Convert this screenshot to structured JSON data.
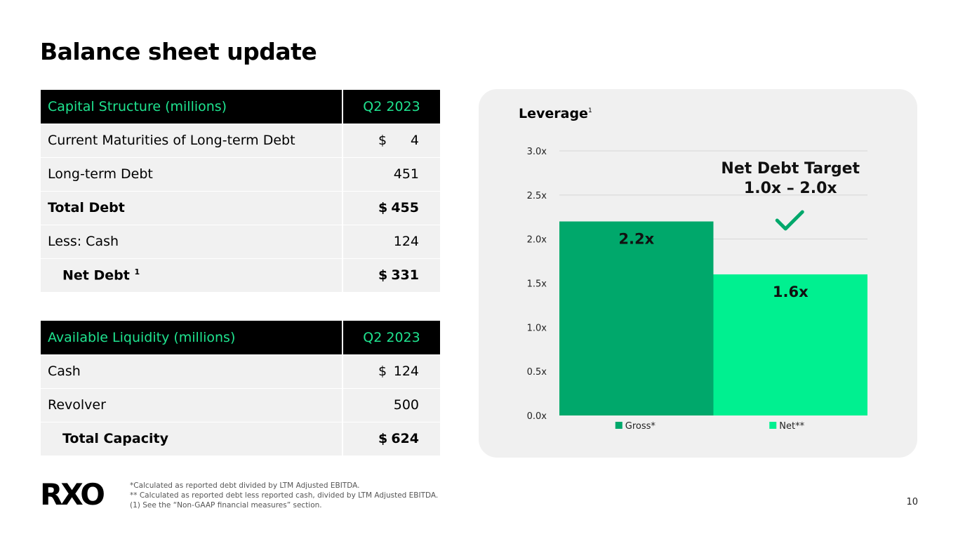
{
  "title": "Balance sheet update",
  "capital_structure": {
    "header": "Capital Structure (millions)",
    "period": "Q2 2023",
    "rows": [
      {
        "label": "Current Maturities of Long-term Debt",
        "dollar": "$",
        "value": "4",
        "bold": false,
        "indent": false,
        "sup": ""
      },
      {
        "label": "Long-term Debt",
        "dollar": "",
        "value": "451",
        "bold": false,
        "indent": false,
        "sup": ""
      },
      {
        "label": "Total Debt",
        "dollar": "$",
        "value": "455",
        "bold": true,
        "indent": false,
        "sup": ""
      },
      {
        "label": "Less: Cash",
        "dollar": "",
        "value": "124",
        "bold": false,
        "indent": false,
        "sup": ""
      },
      {
        "label": "Net Debt",
        "dollar": "$",
        "value": "331",
        "bold": true,
        "indent": true,
        "sup": "1"
      }
    ]
  },
  "liquidity": {
    "header": "Available Liquidity (millions)",
    "period": "Q2 2023",
    "rows": [
      {
        "label": "Cash",
        "dollar": "$",
        "value": "124",
        "bold": false,
        "indent": false,
        "sup": ""
      },
      {
        "label": "Revolver",
        "dollar": "",
        "value": "500",
        "bold": false,
        "indent": false,
        "sup": ""
      },
      {
        "label": "Total Capacity",
        "dollar": "$",
        "value": "624",
        "bold": true,
        "indent": true,
        "sup": ""
      }
    ]
  },
  "chart_data": {
    "type": "bar",
    "title": "Leverage",
    "title_sup": "1",
    "categories": [
      "Gross*",
      "Net**"
    ],
    "values": [
      2.2,
      1.6
    ],
    "value_labels": [
      "2.2x",
      "1.6x"
    ],
    "colors": [
      "#00a86b",
      "#00f090"
    ],
    "ylim": [
      0,
      3.0
    ],
    "yticks": [
      0.0,
      0.5,
      1.0,
      1.5,
      2.0,
      2.5,
      3.0
    ],
    "ytick_labels": [
      "0.0x",
      "0.5x",
      "1.0x",
      "1.5x",
      "2.0x",
      "2.5x",
      "3.0x"
    ],
    "legend": [
      "Gross*",
      "Net**"
    ],
    "legend_position": "bottom",
    "annotation": {
      "line1": "Net Debt Target",
      "line2": "1.0x – 2.0x",
      "check_color": "#00a86b"
    }
  },
  "logo_text": "RXO",
  "footnotes": [
    "*Calculated as reported debt divided by LTM Adjusted EBITDA.",
    "** Calculated as reported debt less reported cash, divided by LTM Adjusted EBITDA.",
    "(1) See the “Non-GAAP financial measures” section."
  ],
  "page_number": "10"
}
